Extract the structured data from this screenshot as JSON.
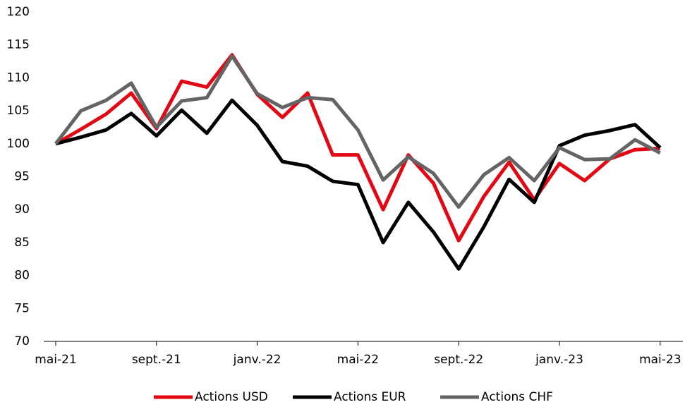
{
  "chart_data": {
    "type": "line",
    "categories": [
      "mai-21",
      null,
      null,
      null,
      "sept.-21",
      null,
      null,
      null,
      "janv.-22",
      null,
      null,
      null,
      "mai-22",
      null,
      null,
      null,
      "sept.-22",
      null,
      null,
      null,
      "janv.-23",
      null,
      null,
      null,
      "mai-23"
    ],
    "series": [
      {
        "name": "Actions USD",
        "color": "#e30613",
        "values": [
          100,
          102.2,
          104.5,
          107.7,
          102.3,
          109.5,
          108.6,
          113.5,
          107.5,
          104,
          107.7,
          98.3,
          98.3,
          90,
          98.3,
          94,
          85.3,
          92,
          97.2,
          91.5,
          97,
          94.4,
          97.7,
          99.1,
          99.3
        ]
      },
      {
        "name": "Actions EUR",
        "color": "#000000",
        "values": [
          100,
          101,
          102.1,
          104.6,
          101.2,
          105.1,
          101.6,
          106.6,
          102.8,
          97.3,
          96.6,
          94.3,
          93.8,
          85,
          91.1,
          86.6,
          81,
          87.4,
          94.6,
          91.1,
          99.7,
          101.3,
          102,
          102.9,
          99.4
        ]
      },
      {
        "name": "Actions CHF",
        "color": "#646464",
        "values": [
          100,
          105,
          106.6,
          109.2,
          102.5,
          106.5,
          107,
          113.3,
          107.6,
          105.5,
          107,
          106.7,
          102.1,
          94.5,
          98,
          95.5,
          90.4,
          95.3,
          97.9,
          94.4,
          99.4,
          97.6,
          97.7,
          100.6,
          98.6
        ]
      }
    ],
    "ylim": [
      70,
      120
    ],
    "yticks": [
      70,
      75,
      80,
      85,
      90,
      95,
      100,
      105,
      110,
      115,
      120
    ],
    "legend": "bottom"
  }
}
